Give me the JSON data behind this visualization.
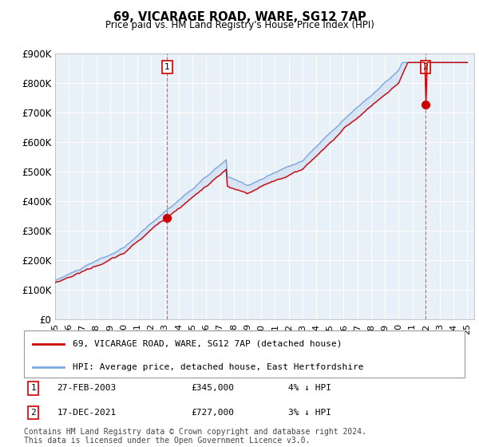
{
  "title": "69, VICARAGE ROAD, WARE, SG12 7AP",
  "subtitle": "Price paid vs. HM Land Registry's House Price Index (HPI)",
  "legend_line1": "69, VICARAGE ROAD, WARE, SG12 7AP (detached house)",
  "legend_line2": "HPI: Average price, detached house, East Hertfordshire",
  "annotation1_label": "1",
  "annotation1_date": "27-FEB-2003",
  "annotation1_price": "£345,000",
  "annotation1_hpi": "4% ↓ HPI",
  "annotation2_label": "2",
  "annotation2_date": "17-DEC-2021",
  "annotation2_price": "£727,000",
  "annotation2_hpi": "3% ↓ HPI",
  "footer": "Contains HM Land Registry data © Crown copyright and database right 2024.\nThis data is licensed under the Open Government Licence v3.0.",
  "price_color": "#cc0000",
  "hpi_color": "#7aaadd",
  "vline_color": "#dd6666",
  "fill_color": "#c8d8f0",
  "ylim": [
    0,
    900000
  ],
  "yticks": [
    0,
    100000,
    200000,
    300000,
    400000,
    500000,
    600000,
    700000,
    800000,
    900000
  ],
  "ytick_labels": [
    "£0",
    "£100K",
    "£200K",
    "£300K",
    "£400K",
    "£500K",
    "£600K",
    "£700K",
    "£800K",
    "£900K"
  ],
  "marker1_year": 2003.15,
  "marker1_value": 345000,
  "marker2_year": 2021.96,
  "marker2_value": 727000,
  "background_color": "#ffffff",
  "plot_bg_color": "#e8f0f8",
  "grid_color": "#ffffff"
}
